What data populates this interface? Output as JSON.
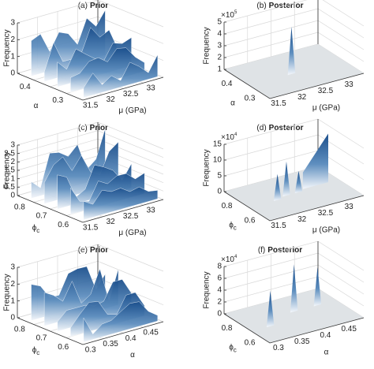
{
  "panels": [
    {
      "label": "(a)",
      "title": "Prior",
      "kind": "prior",
      "zlabel": "Frequency",
      "zticks": [
        0,
        1,
        2,
        3
      ],
      "ylabel": "α",
      "yticks": [
        0.4,
        0.3
      ],
      "xlabel": "μ (GPa)",
      "xticks": [
        31.5,
        32,
        32.5,
        33
      ]
    },
    {
      "label": "(b)",
      "title": "Posterior",
      "kind": "posterior",
      "zlabel": "Frequency",
      "zticks": [
        1,
        2,
        3,
        4,
        5
      ],
      "zexp_base": "×10",
      "zexp": "5",
      "ylabel": "α",
      "yticks": [
        0.4,
        0.3
      ],
      "xlabel": "μ (GPa)",
      "xticks": [
        31.5,
        32,
        32.5,
        33
      ]
    },
    {
      "label": "(c)",
      "title": "Prior",
      "kind": "prior",
      "zlabel": "Frequency",
      "zticks": [
        0,
        0.5,
        1,
        1.5,
        2,
        2.5,
        3
      ],
      "ylabel": "ϕ",
      "ylabel_sub": "c",
      "yticks": [
        0.8,
        0.7,
        0.6
      ],
      "xlabel": "μ (GPa)",
      "xticks": [
        31.5,
        32,
        32.5,
        33
      ]
    },
    {
      "label": "(d)",
      "title": "Posterior",
      "kind": "posterior",
      "zlabel": "Frequency",
      "zticks": [
        0,
        5,
        10,
        15
      ],
      "zexp_base": "×10",
      "zexp": "4",
      "ylabel": "ϕ",
      "ylabel_sub": "c",
      "yticks": [
        0.8,
        0.6
      ],
      "xlabel": "μ (GPa)",
      "xticks": [
        31.5,
        32,
        32.5,
        33
      ]
    },
    {
      "label": "(e)",
      "title": "Prior",
      "kind": "prior",
      "zlabel": "Frequency",
      "zticks": [
        0,
        1,
        2,
        3
      ],
      "ylabel": "ϕ",
      "ylabel_sub": "c",
      "yticks": [
        0.8,
        0.7,
        0.6
      ],
      "xlabel": "α",
      "xticks": [
        0.3,
        0.35,
        0.4,
        0.45
      ]
    },
    {
      "label": "(f)",
      "title": "Posterior",
      "kind": "posterior",
      "zlabel": "Frequency",
      "zticks": [
        0,
        2,
        4,
        6,
        8
      ],
      "zexp_base": "×10",
      "zexp": "4",
      "ylabel": "ϕ",
      "ylabel_sub": "c",
      "yticks": [
        0.8,
        0.6
      ],
      "xlabel": "α",
      "xticks": [
        0.3,
        0.35,
        0.4,
        0.45
      ]
    }
  ]
}
